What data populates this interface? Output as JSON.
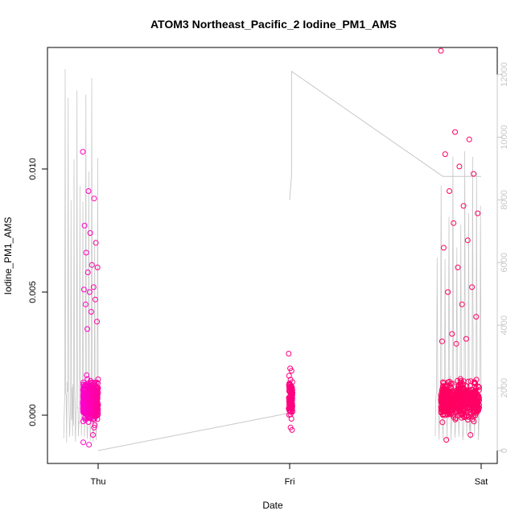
{
  "chart_data": {
    "type": "scatter",
    "title": "ATOM3 Northeast_Pacific_2 Iodine_PM1_AMS",
    "xlabel": "Date",
    "ylabel": "Iodine_PM1_AMS",
    "x_ticks": [
      "Thu",
      "Fri",
      "Sat"
    ],
    "y_ticks": [
      "0.000",
      "0.005",
      "0.010"
    ],
    "y2_ticks": [
      "0",
      "2000",
      "4000",
      "6000",
      "8000",
      "10000",
      "12000"
    ],
    "ylim": [
      -0.0016,
      0.0144
    ],
    "y2lim": [
      -50,
      12400
    ],
    "grid": false,
    "clusters": [
      {
        "name": "Thu",
        "x_range": [
          -0.08,
          0.0
        ],
        "color_left": "#ff00cc",
        "color_right": "#ff0099",
        "outliers": [
          0.0107,
          0.0091,
          0.0088,
          0.0077,
          0.0074,
          0.007,
          0.0066,
          0.0061,
          0.006,
          0.0058,
          0.0052,
          0.0051,
          0.005,
          0.0047,
          0.0045,
          0.0042,
          0.0038,
          0.0035,
          -0.0008,
          -0.0011,
          -0.0012
        ]
      },
      {
        "name": "Fri",
        "x_range": [
          0.995,
          1.015
        ],
        "color_left": "#ff0080",
        "color_right": "#ff0080",
        "outliers": [
          0.0025,
          0.0019,
          0.0018,
          0.0016,
          -0.0005,
          -0.0006
        ]
      },
      {
        "name": "Sat",
        "x_range": [
          1.79,
          1.99
        ],
        "color_left": "#ff0060",
        "color_right": "#ff0066",
        "outliers": [
          0.0148,
          0.0115,
          0.0112,
          0.0106,
          0.0101,
          0.0098,
          0.0091,
          0.0085,
          0.0082,
          0.0078,
          0.0071,
          0.0068,
          0.006,
          0.0052,
          0.005,
          0.0045,
          0.004,
          0.0033,
          0.0031,
          0.003,
          0.0029,
          -0.0008,
          -0.001
        ]
      }
    ],
    "altitude_series": {
      "color": "#c8c8c8",
      "segments": [
        {
          "x": [
            0.0,
            1.0
          ],
          "y": [
            0,
            1200
          ]
        },
        {
          "x": [
            1.0,
            1.01,
            1.01,
            1.8,
            2.0
          ],
          "y": [
            8000,
            8800,
            12100,
            8750,
            8750
          ]
        }
      ],
      "profiles": [
        {
          "x_range": [
            -0.18,
            0.0
          ],
          "peak": 12200
        },
        {
          "x_range": [
            1.76,
            2.0
          ],
          "peak": 11000
        }
      ]
    }
  }
}
